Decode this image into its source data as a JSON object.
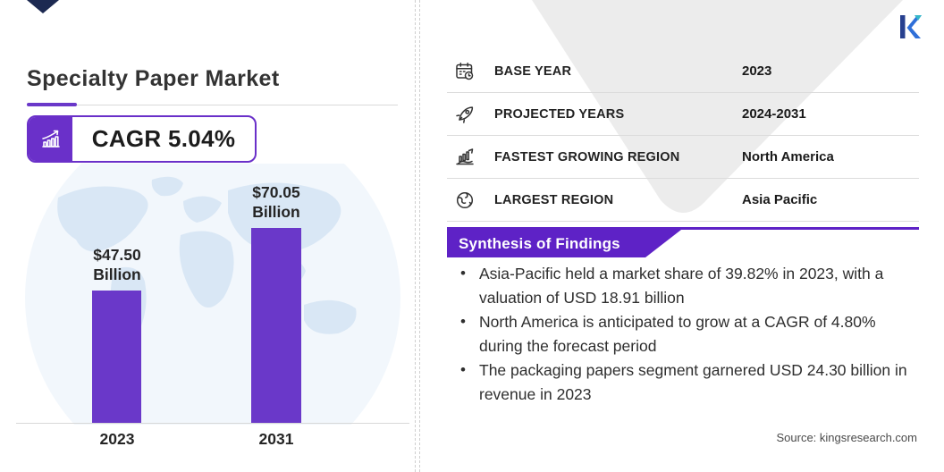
{
  "header": {
    "logo": "kings-research-k-logo",
    "source_text": "Source: kingsresearch.com"
  },
  "left_panel": {
    "title": "Specialty Paper Market",
    "cagr_badge": {
      "label": "CAGR 5.04%",
      "icon": "growth-arrow-bars-icon"
    }
  },
  "chart_data": {
    "type": "bar",
    "title": "Specialty Paper Market",
    "categories": [
      "2023",
      "2031"
    ],
    "values": [
      47.5,
      70.05
    ],
    "unit": "USD Billion",
    "labels": [
      {
        "amount": "$47.50",
        "unit": "Billion"
      },
      {
        "amount": "$70.05",
        "unit": "Billion"
      }
    ],
    "bar_color": "#6a38c9",
    "background": "world-map",
    "axis": "baseline only, no gridlines",
    "ylim": [
      0,
      70.05
    ]
  },
  "info_table": {
    "rows": [
      {
        "icon": "calendar-icon",
        "label": "BASE YEAR",
        "value": "2023"
      },
      {
        "icon": "rocket-icon",
        "label": "PROJECTED YEARS",
        "value": "2024-2031"
      },
      {
        "icon": "growth-region-icon",
        "label": "FASTEST GROWING REGION",
        "value": "North America"
      },
      {
        "icon": "globe-icon",
        "label": "LARGEST REGION",
        "value": "Asia Pacific"
      }
    ]
  },
  "findings": {
    "banner_title": "Synthesis of Findings",
    "bullets": [
      "Asia-Pacific held a market share of 39.82% in 2023, with a valuation of USD 18.91 billion",
      "North America is anticipated to grow at a CAGR of 4.80% during the forecast period",
      "The packaging papers segment garnered USD 24.30 billion in revenue in 2023"
    ]
  },
  "colors": {
    "accent_purple": "#6a38c9",
    "banner_purple": "#5e22c6",
    "triangle_gray": "#ececec",
    "map_blue": "#d9e7f5",
    "text_dark": "#222222",
    "source_gray": "#4a4a4a"
  }
}
